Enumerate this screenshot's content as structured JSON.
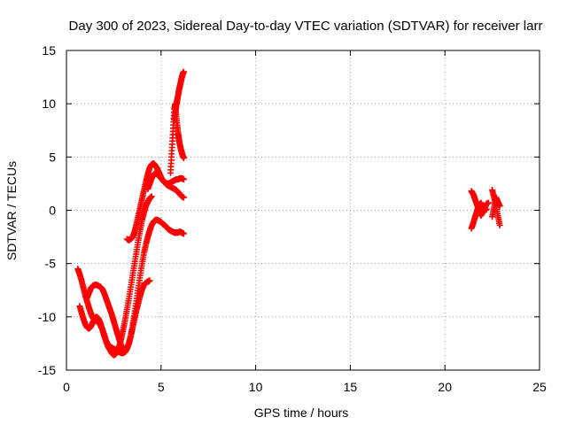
{
  "chart_data": {
    "type": "scatter",
    "title": "Day 300 of 2023, Sidereal Day-to-day VTEC variation (SDTVAR) for receiver larr",
    "xlabel": "GPS time / hours",
    "ylabel": "SDTVAR / TECUs",
    "xlim": [
      0,
      25
    ],
    "ylim": [
      -15,
      15
    ],
    "xticks": [
      "0",
      "5",
      "10",
      "15",
      "20",
      "25"
    ],
    "yticks": [
      "-15",
      "-10",
      "-5",
      "0",
      "5",
      "10",
      "15"
    ],
    "grid": true,
    "marker": "+",
    "color": "#ff0000",
    "series": [
      {
        "x": [
          0.6,
          0.7,
          0.8,
          0.9,
          1.0,
          1.1,
          1.2,
          1.3,
          1.4,
          1.5,
          1.6,
          1.7,
          1.8,
          1.9,
          2.0,
          2.1,
          2.2,
          2.3,
          2.4,
          2.5,
          2.6,
          2.7,
          2.8,
          2.9,
          3.0,
          3.1,
          3.2,
          3.3,
          3.4,
          3.5,
          3.6,
          3.7,
          3.8,
          3.9,
          4.0,
          4.1,
          4.2,
          4.3,
          4.4,
          4.5
        ],
        "y": [
          -5.5,
          -6.0,
          -6.6,
          -7.3,
          -8.0,
          -8.6,
          -9.2,
          -9.7,
          -10.1,
          -10.3,
          -10.4,
          -10.5,
          -10.8,
          -11.2,
          -11.7,
          -12.3,
          -12.8,
          -13.1,
          -13.4,
          -13.6,
          -13.5,
          -13.2,
          -12.7,
          -12.0,
          -11.2,
          -10.3,
          -9.3,
          -8.3,
          -7.2,
          -6.1,
          -5.0,
          -3.9,
          -2.8,
          -1.8,
          -0.9,
          -0.2,
          0.4,
          0.8,
          1.1,
          1.3
        ]
      },
      {
        "x": [
          0.7,
          0.8,
          0.9,
          1.0,
          1.1,
          1.2,
          1.3,
          1.4,
          1.5,
          1.6,
          1.7,
          1.8,
          1.9,
          2.0,
          2.1,
          2.2,
          2.3,
          2.4,
          2.5,
          2.6,
          2.7,
          2.8,
          2.9,
          3.0,
          3.1,
          3.2,
          3.3,
          3.4,
          3.5,
          3.6,
          3.7,
          3.8,
          3.9,
          4.0,
          4.1,
          4.2,
          4.3,
          4.4,
          4.5,
          4.6,
          4.7,
          4.8,
          4.9,
          5.0,
          5.1,
          5.2,
          5.3,
          5.4,
          5.5,
          5.6,
          5.7,
          5.8,
          5.9,
          6.0,
          6.1,
          6.2
        ],
        "y": [
          -9.0,
          -9.6,
          -10.2,
          -10.7,
          -11.0,
          -11.1,
          -10.9,
          -10.5,
          -10.1,
          -10.0,
          -10.2,
          -10.6,
          -11.2,
          -11.8,
          -12.3,
          -12.6,
          -12.8,
          -12.9,
          -13.0,
          -13.1,
          -13.2,
          -13.3,
          -13.4,
          -13.4,
          -13.3,
          -13.0,
          -12.5,
          -11.8,
          -10.8,
          -9.7,
          -8.5,
          -7.3,
          -6.1,
          -5.0,
          -4.0,
          -3.2,
          -2.5,
          -1.9,
          -1.4,
          -1.1,
          -0.9,
          -0.9,
          -1.0,
          -1.1,
          -1.3,
          -1.4,
          -1.6,
          -1.8,
          -1.9,
          -2.0,
          -2.1,
          -2.1,
          -2.1,
          -2.0,
          -2.1,
          -2.2
        ]
      },
      {
        "x": [
          1.1,
          1.2,
          1.3,
          1.4,
          1.5,
          1.6,
          1.7,
          1.8,
          1.9,
          2.0,
          2.1,
          2.2,
          2.3,
          2.4,
          2.5,
          2.6,
          2.7,
          2.8,
          2.9,
          3.0,
          3.1,
          3.2,
          3.3,
          3.4,
          3.5,
          3.6,
          3.7,
          3.8,
          3.9,
          4.0,
          4.1,
          4.2,
          4.3,
          4.4
        ],
        "y": [
          -8.2,
          -7.7,
          -7.3,
          -7.1,
          -7.0,
          -7.0,
          -7.1,
          -7.2,
          -7.4,
          -7.8,
          -8.3,
          -8.8,
          -9.3,
          -9.8,
          -10.4,
          -11.0,
          -11.6,
          -12.2,
          -12.7,
          -13.0,
          -13.1,
          -12.9,
          -12.5,
          -11.8,
          -11.0,
          -10.2,
          -9.4,
          -8.7,
          -8.0,
          -7.4,
          -7.0,
          -6.8,
          -6.7,
          -6.6
        ]
      },
      {
        "x": [
          3.2,
          3.3,
          3.4,
          3.5,
          3.6,
          3.7,
          3.8,
          3.9,
          4.0,
          4.1,
          4.2,
          4.3,
          4.4,
          4.5,
          4.6,
          4.7,
          4.8,
          4.9,
          5.0,
          5.1,
          5.2,
          5.3,
          5.4,
          5.5,
          5.6,
          5.7,
          5.8,
          5.9,
          6.0,
          6.1,
          6.2
        ],
        "y": [
          -2.7,
          -2.8,
          -2.7,
          -2.5,
          -2.0,
          -1.3,
          -0.5,
          0.3,
          1.1,
          1.9,
          2.7,
          3.4,
          4.0,
          4.3,
          4.4,
          4.2,
          3.9,
          3.5,
          3.1,
          2.8,
          2.6,
          2.5,
          2.5,
          2.6,
          2.7,
          2.8,
          2.9,
          2.9,
          3.0,
          3.0,
          2.9
        ]
      },
      {
        "x": [
          4.3,
          4.4,
          4.5,
          4.6,
          4.7,
          4.8,
          4.9,
          5.0,
          5.1,
          5.2,
          5.3,
          5.4,
          5.5,
          5.6,
          5.7,
          5.8,
          5.9,
          6.0,
          6.1,
          6.2
        ],
        "y": [
          2.0,
          2.5,
          3.0,
          3.3,
          3.5,
          3.4,
          3.2,
          3.0,
          2.8,
          2.6,
          2.4,
          2.3,
          2.2,
          2.1,
          2.0,
          1.9,
          1.7,
          1.5,
          1.3,
          1.2
        ]
      },
      {
        "x": [
          5.5,
          5.55,
          5.6,
          5.65,
          5.7,
          5.75,
          5.8,
          5.85,
          5.9,
          5.95,
          6.0,
          6.05,
          6.1,
          6.15,
          6.2
        ],
        "y": [
          3.5,
          5.0,
          6.5,
          8.0,
          9.5,
          10.0,
          9.0,
          8.0,
          7.2,
          6.6,
          6.1,
          5.7,
          5.4,
          5.1,
          4.9
        ]
      },
      {
        "x": [
          5.7,
          5.75,
          5.8,
          5.85,
          5.9,
          5.95,
          6.0,
          6.05,
          6.1,
          6.15,
          6.2
        ],
        "y": [
          8.5,
          9.2,
          9.8,
          10.3,
          10.8,
          11.3,
          11.7,
          12.1,
          12.5,
          12.8,
          13.0
        ]
      },
      {
        "x": [
          21.4,
          21.5,
          21.6,
          21.7,
          21.8,
          21.9,
          22.0,
          22.1,
          22.2,
          22.3
        ],
        "y": [
          1.8,
          1.5,
          1.0,
          0.5,
          0.0,
          -0.5,
          -0.2,
          0.2,
          0.6,
          0.7
        ]
      },
      {
        "x": [
          21.4,
          21.5,
          21.6,
          21.7,
          21.8,
          21.9,
          22.0,
          22.1,
          22.2
        ],
        "y": [
          -1.7,
          -1.2,
          -0.6,
          0.0,
          0.4,
          0.7,
          0.3,
          0.0,
          0.1
        ]
      },
      {
        "x": [
          22.5,
          22.6,
          22.7,
          22.8,
          22.9
        ],
        "y": [
          1.9,
          1.2,
          0.5,
          -0.5,
          -1.4
        ]
      },
      {
        "x": [
          22.5,
          22.6,
          22.7,
          22.8,
          22.9
        ],
        "y": [
          -0.6,
          0.3,
          1.2,
          0.8,
          0.4
        ]
      }
    ]
  }
}
